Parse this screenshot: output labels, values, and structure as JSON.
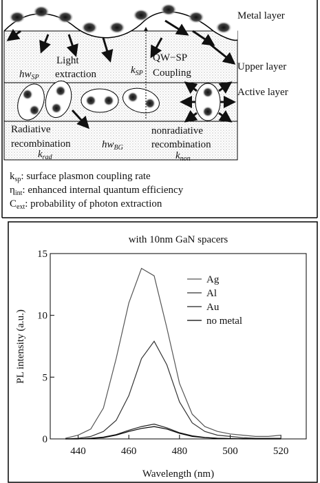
{
  "diagram": {
    "layers": [
      "Metal layer",
      "Upper layer",
      "Active layer"
    ],
    "light_extraction": [
      "Light",
      "extraction"
    ],
    "hw_sp": {
      "main": "hw",
      "sub": "SP"
    },
    "k_sp": {
      "main": "k",
      "sub": "SP"
    },
    "coupling": [
      "QW−SP",
      "Coupling"
    ],
    "radiative": [
      "Radiative",
      "recombination"
    ],
    "hw_bg": {
      "main": "hw",
      "sub": "BG"
    },
    "k_rad": {
      "main": "k",
      "sub": "rad"
    },
    "nonradiative": [
      "nonradiative",
      "recombination"
    ],
    "k_non": {
      "main": "k",
      "sub": "non"
    },
    "definitions": [
      {
        "symbol": "k",
        "sub": "sp",
        "text": ": surface plasmon coupling rate"
      },
      {
        "symbol": "η",
        "sub": "int",
        "text": ": enhanced internal quantum efficiency"
      },
      {
        "symbol": "C",
        "sub": "ext",
        "text": ": probability of photon extraction"
      }
    ]
  },
  "chart_data": {
    "type": "line",
    "title": "with 10nm GaN spacers",
    "x_label": "Wavelength (nm)",
    "y_label": "PL intensity (a.u.)",
    "xlim": [
      429,
      530
    ],
    "xticks": [
      440,
      460,
      480,
      500,
      520
    ],
    "ylim": [
      0,
      15
    ],
    "yticks": [
      0,
      5,
      10,
      15
    ],
    "x": [
      435,
      440,
      445,
      450,
      455,
      460,
      465,
      470,
      475,
      480,
      485,
      490,
      495,
      500,
      505,
      510,
      515,
      520
    ],
    "series": [
      {
        "name": "Ag",
        "color": "#555555",
        "values": [
          0.05,
          0.3,
          0.8,
          2.5,
          6.5,
          11,
          13.8,
          13.2,
          9,
          4.5,
          2,
          1,
          0.6,
          0.4,
          0.3,
          0.2,
          0.2,
          0.3
        ]
      },
      {
        "name": "Al",
        "color": "#333333",
        "values": [
          0,
          0.05,
          0.2,
          0.6,
          1.5,
          3.5,
          6.5,
          7.9,
          6,
          3,
          1.3,
          0.6,
          0.3,
          0.2,
          0.1,
          0.05,
          0.05,
          0.05
        ]
      },
      {
        "name": "Au",
        "color": "#222222",
        "values": [
          0,
          0,
          0.05,
          0.15,
          0.35,
          0.7,
          1.0,
          1.2,
          0.9,
          0.5,
          0.25,
          0.12,
          0.05,
          0.03,
          0.02,
          0,
          0,
          0
        ]
      },
      {
        "name": "no metal",
        "color": "#000000",
        "values": [
          0,
          0,
          0.05,
          0.1,
          0.3,
          0.6,
          0.85,
          1.0,
          0.8,
          0.45,
          0.2,
          0.1,
          0.05,
          0.02,
          0,
          0,
          0,
          0
        ]
      }
    ]
  }
}
